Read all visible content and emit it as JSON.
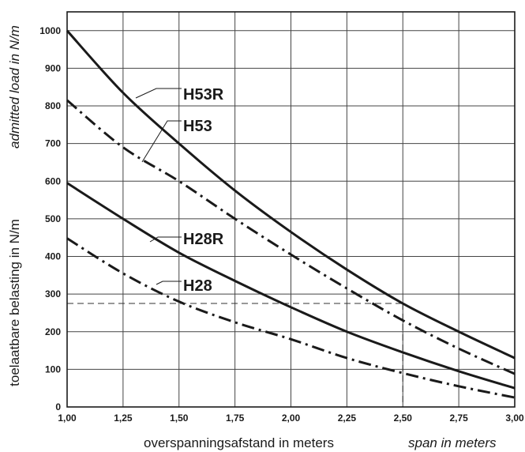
{
  "chart_data": {
    "type": "line",
    "xlabel": "overspanningsafstand in meters",
    "xlabel_en": "span in meters",
    "ylabel": "toelaatbare belasting in N/m",
    "ylabel_en": "admitted load in N/m",
    "xlim": [
      1.0,
      3.0
    ],
    "ylim": [
      0,
      1050
    ],
    "x_ticks": [
      1.0,
      1.25,
      1.5,
      1.75,
      2.0,
      2.25,
      2.5,
      2.75,
      3.0
    ],
    "x_tick_labels": [
      "1,00",
      "1,25",
      "1,50",
      "1,75",
      "2,00",
      "2,25",
      "2,50",
      "2,75",
      "3,00"
    ],
    "y_ticks": [
      0,
      100,
      200,
      300,
      400,
      500,
      600,
      700,
      800,
      900,
      1000
    ],
    "y_tick_labels": [
      "0",
      "100",
      "200",
      "300",
      "400",
      "500",
      "600",
      "700",
      "800",
      "900",
      "1000"
    ],
    "grid": true,
    "x": [
      1.0,
      1.25,
      1.5,
      1.75,
      2.0,
      2.25,
      2.5,
      2.75,
      3.0
    ],
    "series": [
      {
        "name": "H53R",
        "style": "solid",
        "values": [
          1000,
          835,
          700,
          575,
          465,
          365,
          275,
          200,
          130
        ]
      },
      {
        "name": "H53",
        "style": "dashdot",
        "values": [
          815,
          690,
          600,
          500,
          405,
          315,
          230,
          155,
          88
        ]
      },
      {
        "name": "H28R",
        "style": "solid",
        "values": [
          595,
          500,
          410,
          335,
          265,
          200,
          145,
          95,
          50
        ]
      },
      {
        "name": "H28",
        "style": "dashdot",
        "values": [
          448,
          355,
          280,
          225,
          180,
          130,
          90,
          55,
          25
        ]
      }
    ],
    "reference_line": {
      "x": 2.5,
      "y": 275,
      "style": "dashed"
    },
    "colors": {
      "line": "#1a1a1a",
      "grid": "#444444",
      "background": "#ffffff"
    }
  }
}
